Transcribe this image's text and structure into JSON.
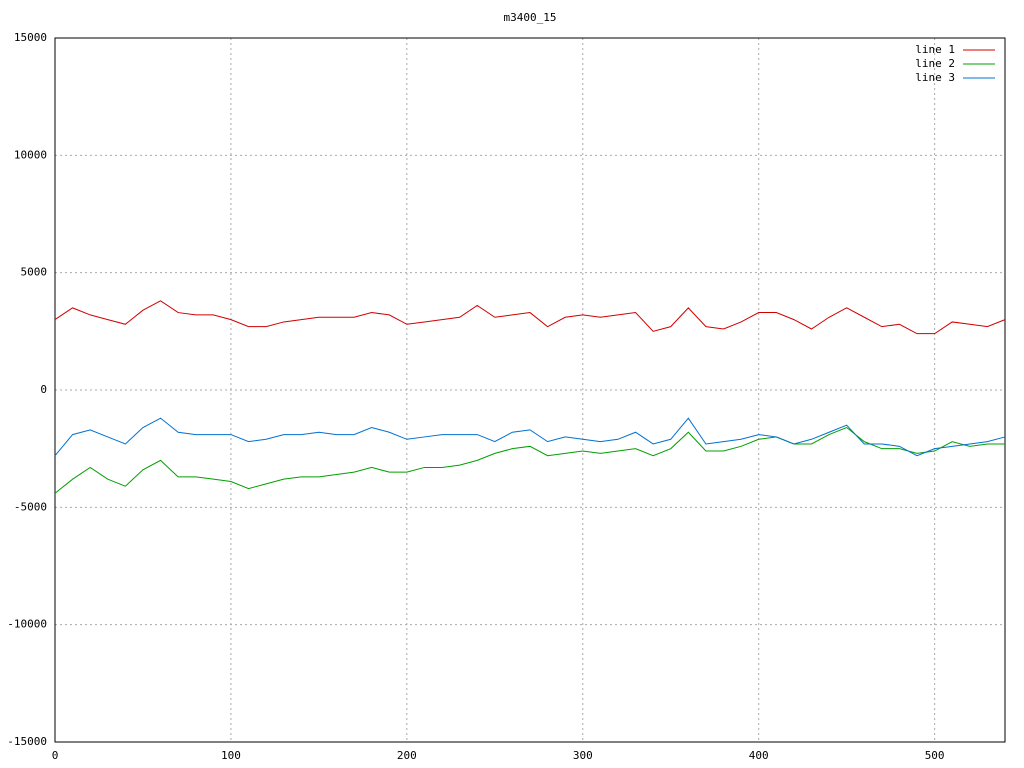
{
  "chart_data": {
    "type": "line",
    "title": "m3400_15",
    "x": [
      0,
      10,
      20,
      30,
      40,
      50,
      60,
      70,
      80,
      90,
      100,
      110,
      120,
      130,
      140,
      150,
      160,
      170,
      180,
      190,
      200,
      210,
      220,
      230,
      240,
      250,
      260,
      270,
      280,
      290,
      300,
      310,
      320,
      330,
      340,
      350,
      360,
      370,
      380,
      390,
      400,
      410,
      420,
      430,
      440,
      450,
      460,
      470,
      480,
      490,
      500,
      510,
      520,
      530,
      540
    ],
    "series": [
      {
        "name": "line 1",
        "color": "#d00000",
        "values": [
          3000,
          3500,
          3200,
          3000,
          2800,
          3400,
          3800,
          3300,
          3200,
          3200,
          3000,
          2700,
          2700,
          2900,
          3000,
          3100,
          3100,
          3100,
          3300,
          3200,
          2800,
          2900,
          3000,
          3100,
          3600,
          3100,
          3200,
          3300,
          2700,
          3100,
          3200,
          3100,
          3200,
          3300,
          2500,
          2700,
          3500,
          2700,
          2600,
          2900,
          3300,
          3300,
          3000,
          2600,
          3100,
          3500,
          3100,
          2700,
          2800,
          2400,
          2400,
          2900,
          2800,
          2700,
          3000
        ]
      },
      {
        "name": "line 2",
        "color": "#00a000",
        "values": [
          -4400,
          -3800,
          -3300,
          -3800,
          -4100,
          -3400,
          -3000,
          -3700,
          -3700,
          -3800,
          -3900,
          -4200,
          -4000,
          -3800,
          -3700,
          -3700,
          -3600,
          -3500,
          -3300,
          -3500,
          -3500,
          -3300,
          -3300,
          -3200,
          -3000,
          -2700,
          -2500,
          -2400,
          -2800,
          -2700,
          -2600,
          -2700,
          -2600,
          -2500,
          -2800,
          -2500,
          -1800,
          -2600,
          -2600,
          -2400,
          -2100,
          -2000,
          -2300,
          -2300,
          -1900,
          -1600,
          -2200,
          -2500,
          -2500,
          -2700,
          -2600,
          -2200,
          -2400,
          -2300,
          -2300
        ]
      },
      {
        "name": "line 3",
        "color": "#0070d0",
        "values": [
          -2800,
          -1900,
          -1700,
          -2000,
          -2300,
          -1600,
          -1200,
          -1800,
          -1900,
          -1900,
          -1900,
          -2200,
          -2100,
          -1900,
          -1900,
          -1800,
          -1900,
          -1900,
          -1600,
          -1800,
          -2100,
          -2000,
          -1900,
          -1900,
          -1900,
          -2200,
          -1800,
          -1700,
          -2200,
          -2000,
          -2100,
          -2200,
          -2100,
          -1800,
          -2300,
          -2100,
          -1200,
          -2300,
          -2200,
          -2100,
          -1900,
          -2000,
          -2300,
          -2100,
          -1800,
          -1500,
          -2300,
          -2300,
          -2400,
          -2800,
          -2500,
          -2400,
          -2300,
          -2200,
          -2000
        ]
      }
    ],
    "xlim": [
      0,
      540
    ],
    "xticks": [
      0,
      100,
      200,
      300,
      400,
      500
    ],
    "ylim": [
      -15000,
      15000
    ],
    "yticks": [
      -15000,
      -10000,
      -5000,
      0,
      5000,
      10000,
      15000
    ],
    "grid": true,
    "legend": "top-right"
  }
}
